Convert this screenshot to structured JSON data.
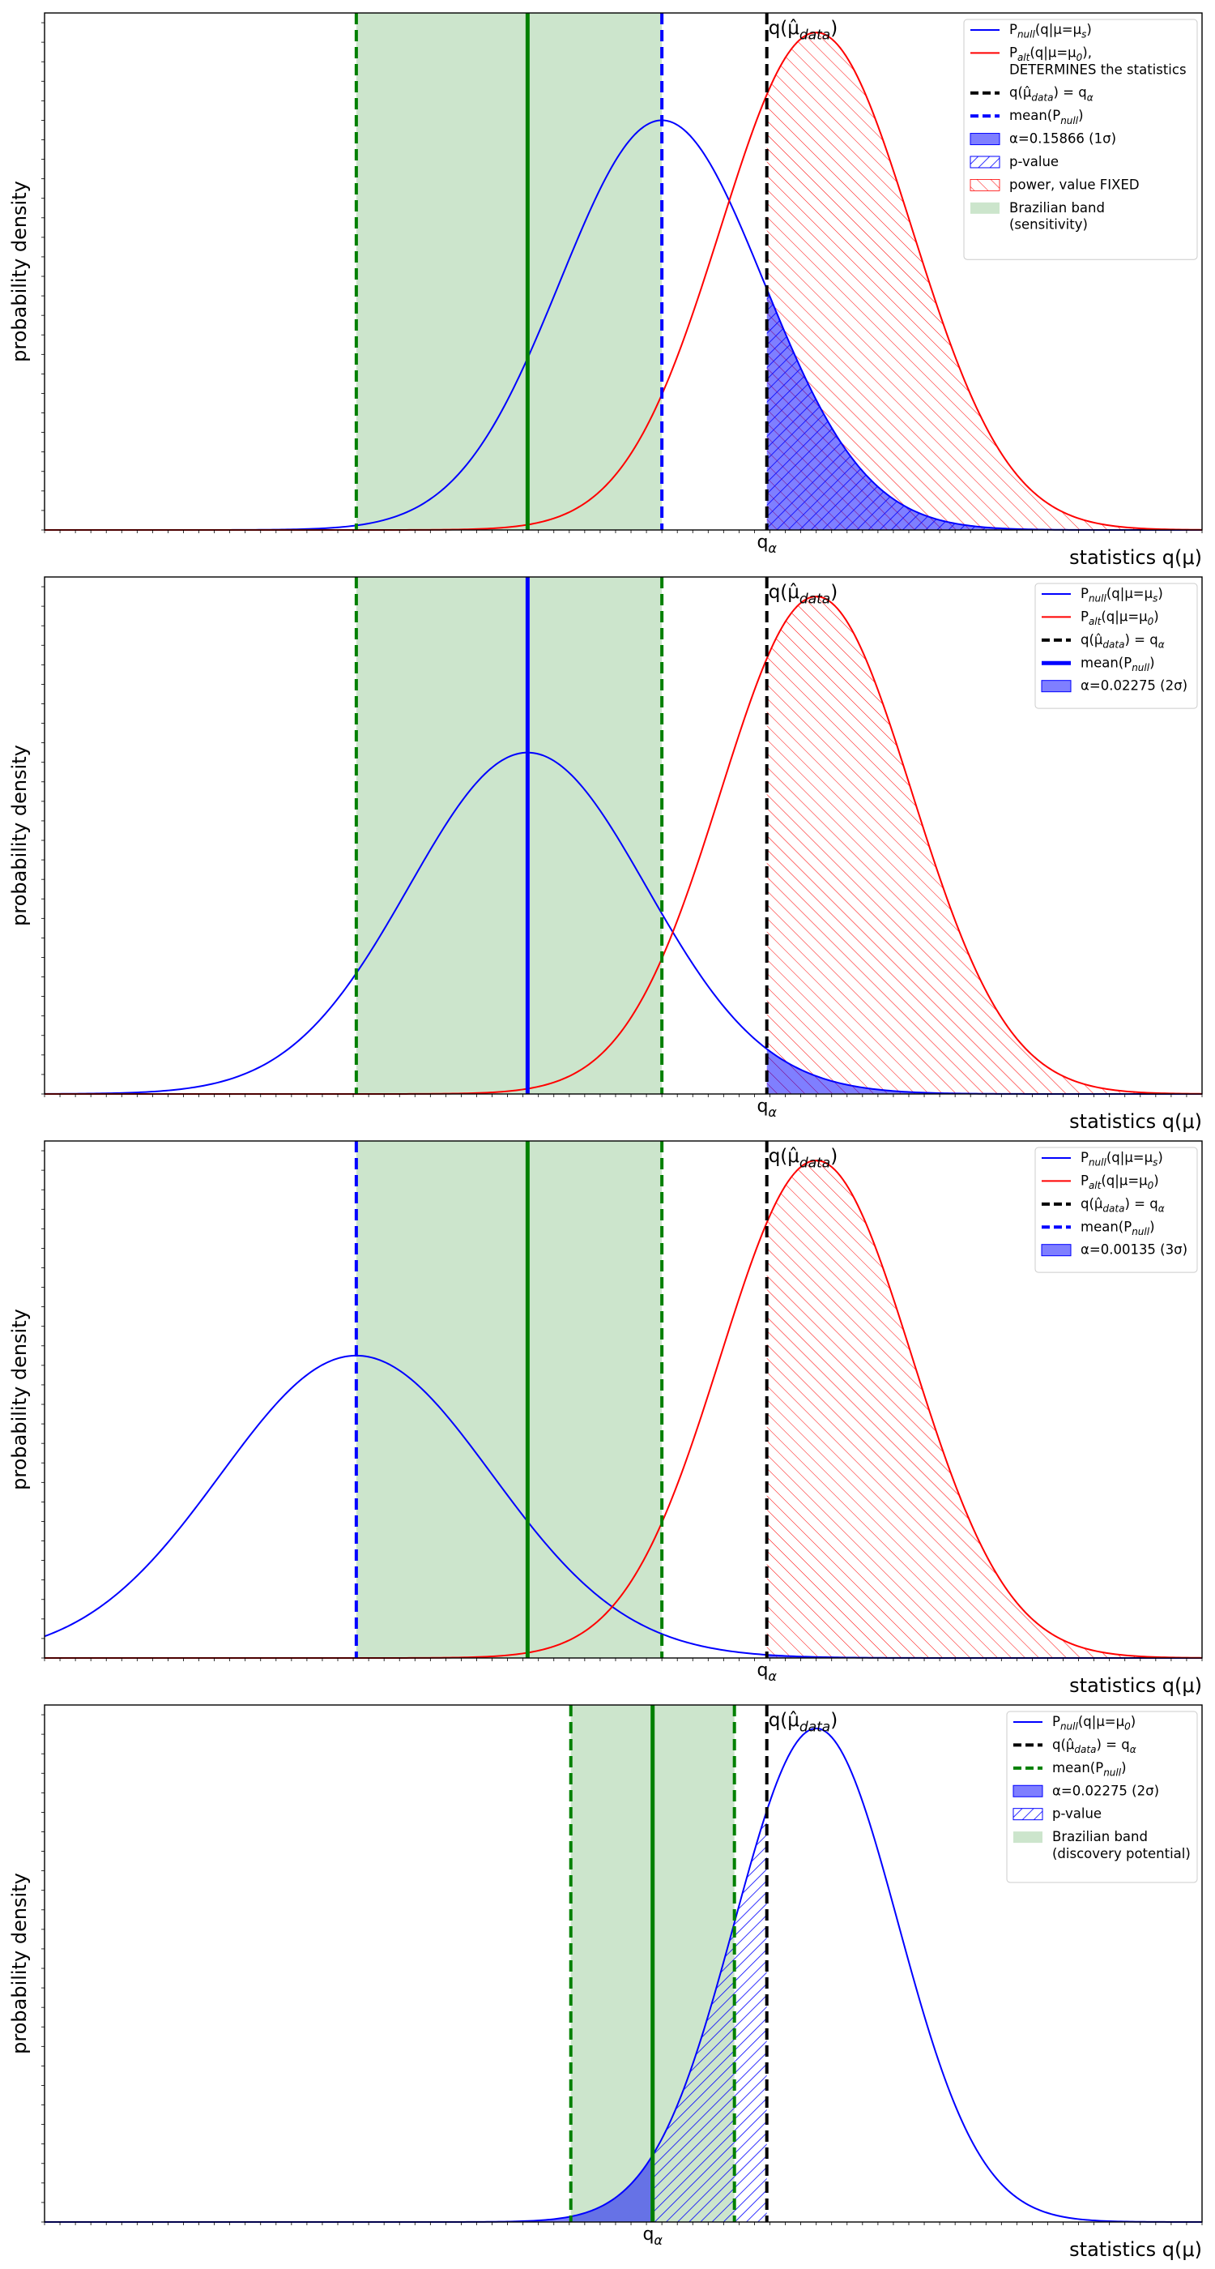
{
  "chart_data": [
    {
      "type": "line",
      "xlabel": "statistics q(μ)",
      "ylabel": "probability density",
      "xlim": [
        -1.5,
        6.0
      ],
      "ylim": [
        0,
        0.265
      ],
      "q_alpha": 3.18,
      "q_alpha_label": "q",
      "q_alpha_sub": "α",
      "data_line_label": "q(μ̂",
      "data_line_sub": "data",
      "series": [
        {
          "name": "null",
          "color": "#0000ff",
          "mean": 2.5,
          "sigma": 0.66,
          "peak": 0.21
        },
        {
          "name": "alt",
          "color": "#ff0000",
          "mean": 3.5,
          "sigma": 0.62,
          "peak": 0.255
        }
      ],
      "vertical_lines": [
        {
          "x": 0.52,
          "color": "#008000",
          "style": "dashed"
        },
        {
          "x": 1.63,
          "color": "#008000",
          "style": "solid"
        },
        {
          "x": 2.5,
          "color": "#0000ff",
          "style": "dashed"
        },
        {
          "x": 3.18,
          "color": "#000000",
          "style": "dashed"
        }
      ],
      "band": [
        0.52,
        2.5
      ],
      "fills": {
        "alpha": "null",
        "pvalue": "null",
        "power": "alt"
      },
      "legend": [
        {
          "kind": "line",
          "color": "#0000ff",
          "text": "P",
          "sub": "null",
          "tail": "(q|μ=μ",
          "tailsub": "s",
          "end": ")"
        },
        {
          "kind": "line",
          "color": "#ff0000",
          "text": "P",
          "sub": "alt",
          "tail": "(q|μ=μ",
          "tailsub": "0",
          "end": "),",
          "line2": "DETERMINES the statistics"
        },
        {
          "kind": "dash",
          "color": "#000000",
          "text": "q(μ̂",
          "sub": "data",
          "tail": ") = q",
          "tailsub": "α",
          "end": ""
        },
        {
          "kind": "dash",
          "color": "#0000ff",
          "text": "mean(P",
          "sub": "null",
          "tail": ")",
          "tailsub": "",
          "end": ""
        },
        {
          "kind": "patch",
          "color": "#0000ff",
          "text": "α=0.15866 (1σ)",
          "sub": "",
          "tail": "",
          "tailsub": "",
          "end": ""
        },
        {
          "kind": "hatch-blue",
          "color": "#0000ff",
          "text": "p-value",
          "sub": "",
          "tail": "",
          "tailsub": "",
          "end": ""
        },
        {
          "kind": "hatch-red",
          "color": "#ff0000",
          "text": "power, value FIXED",
          "sub": "",
          "tail": "",
          "tailsub": "",
          "end": ""
        },
        {
          "kind": "band",
          "color": "#008000",
          "text": "Brazilian band",
          "sub": "",
          "tail": "",
          "tailsub": "",
          "end": "",
          "line2": "(sensitivity)"
        }
      ]
    },
    {
      "type": "line",
      "xlabel": "statistics q(μ)",
      "ylabel": "probability density",
      "xlim": [
        -1.5,
        6.0
      ],
      "ylim": [
        0,
        0.265
      ],
      "q_alpha": 3.18,
      "q_alpha_label": "q",
      "q_alpha_sub": "α",
      "data_line_label": "q(μ̂",
      "data_line_sub": "data",
      "series": [
        {
          "name": "null",
          "color": "#0000ff",
          "mean": 1.63,
          "sigma": 0.77,
          "peak": 0.175
        },
        {
          "name": "alt",
          "color": "#ff0000",
          "mean": 3.5,
          "sigma": 0.62,
          "peak": 0.255
        }
      ],
      "vertical_lines": [
        {
          "x": 0.52,
          "color": "#008000",
          "style": "dashed"
        },
        {
          "x": 2.5,
          "color": "#008000",
          "style": "dashed"
        },
        {
          "x": 1.63,
          "color": "#0000ff",
          "style": "solid"
        },
        {
          "x": 3.18,
          "color": "#000000",
          "style": "dashed"
        }
      ],
      "band": [
        0.52,
        2.5
      ],
      "fills": {
        "alpha": "null",
        "pvalue": "",
        "power": "alt"
      },
      "legend": [
        {
          "kind": "line",
          "color": "#0000ff",
          "text": "P",
          "sub": "null",
          "tail": "(q|μ=μ",
          "tailsub": "s",
          "end": ")"
        },
        {
          "kind": "line",
          "color": "#ff0000",
          "text": "P",
          "sub": "alt",
          "tail": "(q|μ=μ",
          "tailsub": "0",
          "end": ")"
        },
        {
          "kind": "dash",
          "color": "#000000",
          "text": "q(μ̂",
          "sub": "data",
          "tail": ") = q",
          "tailsub": "α",
          "end": ""
        },
        {
          "kind": "thick",
          "color": "#0000ff",
          "text": "mean(P",
          "sub": "null",
          "tail": ")",
          "tailsub": "",
          "end": ""
        },
        {
          "kind": "patch",
          "color": "#0000ff",
          "text": "α=0.02275 (2σ)",
          "sub": "",
          "tail": "",
          "tailsub": "",
          "end": ""
        }
      ]
    },
    {
      "type": "line",
      "xlabel": "statistics q(μ)",
      "ylabel": "probability density",
      "xlim": [
        -1.5,
        6.0
      ],
      "ylim": [
        0,
        0.265
      ],
      "q_alpha": 3.18,
      "q_alpha_label": "q",
      "q_alpha_sub": "α",
      "data_line_label": "q(μ̂",
      "data_line_sub": "data",
      "series": [
        {
          "name": "null",
          "color": "#0000ff",
          "mean": 0.52,
          "sigma": 0.88,
          "peak": 0.155
        },
        {
          "name": "alt",
          "color": "#ff0000",
          "mean": 3.5,
          "sigma": 0.62,
          "peak": 0.255
        }
      ],
      "vertical_lines": [
        {
          "x": 2.5,
          "color": "#008000",
          "style": "dashed"
        },
        {
          "x": 1.63,
          "color": "#008000",
          "style": "solid"
        },
        {
          "x": 0.52,
          "color": "#0000ff",
          "style": "dashed"
        },
        {
          "x": 3.18,
          "color": "#000000",
          "style": "dashed"
        }
      ],
      "band": [
        0.52,
        2.5
      ],
      "fills": {
        "alpha": "null",
        "pvalue": "",
        "power": "alt"
      },
      "legend": [
        {
          "kind": "line",
          "color": "#0000ff",
          "text": "P",
          "sub": "null",
          "tail": "(q|μ=μ",
          "tailsub": "s",
          "end": ")"
        },
        {
          "kind": "line",
          "color": "#ff0000",
          "text": "P",
          "sub": "alt",
          "tail": "(q|μ=μ",
          "tailsub": "0",
          "end": ")"
        },
        {
          "kind": "dash",
          "color": "#000000",
          "text": "q(μ̂",
          "sub": "data",
          "tail": ") = q",
          "tailsub": "α",
          "end": ""
        },
        {
          "kind": "dash",
          "color": "#0000ff",
          "text": "mean(P",
          "sub": "null",
          "tail": ")",
          "tailsub": "",
          "end": ""
        },
        {
          "kind": "patch",
          "color": "#0000ff",
          "text": "α=0.00135 (3σ)",
          "sub": "",
          "tail": "",
          "tailsub": "",
          "end": ""
        }
      ]
    },
    {
      "type": "line",
      "xlabel": "statistics q(μ)",
      "ylabel": "probability density",
      "xlim": [
        -1.5,
        6.0
      ],
      "ylim": [
        0,
        0.265
      ],
      "q_alpha": 2.44,
      "q_alpha_label": "q",
      "q_alpha_sub": "α",
      "data_line_x": 3.18,
      "data_line_label": "q(μ̂",
      "data_line_sub": "data",
      "series": [
        {
          "name": "null",
          "color": "#0000ff",
          "mean": 3.5,
          "sigma": 0.53,
          "peak": 0.253
        }
      ],
      "vertical_lines": [
        {
          "x": 1.91,
          "color": "#008000",
          "style": "dashed"
        },
        {
          "x": 2.44,
          "color": "#008000",
          "style": "solid"
        },
        {
          "x": 2.97,
          "color": "#008000",
          "style": "dashed"
        },
        {
          "x": 3.18,
          "color": "#000000",
          "style": "dashed"
        }
      ],
      "band": [
        1.91,
        2.97
      ],
      "fills": {
        "alpha": "null",
        "alpha_to": 2.44,
        "pvalue": "null",
        "pvalue_from": 2.44,
        "pvalue_to": 3.18,
        "power": ""
      },
      "legend": [
        {
          "kind": "line",
          "color": "#0000ff",
          "text": "P",
          "sub": "null",
          "tail": "(q|μ=μ",
          "tailsub": "0",
          "end": ")"
        },
        {
          "kind": "dash",
          "color": "#000000",
          "text": "q(μ̂",
          "sub": "data",
          "tail": ") = q",
          "tailsub": "α",
          "end": ""
        },
        {
          "kind": "dash",
          "color": "#008000",
          "text": "mean(P",
          "sub": "null",
          "tail": ")",
          "tailsub": "",
          "end": ""
        },
        {
          "kind": "patch",
          "color": "#0000ff",
          "text": "α=0.02275 (2σ)",
          "sub": "",
          "tail": "",
          "tailsub": "",
          "end": ""
        },
        {
          "kind": "hatch-blue",
          "color": "#0000ff",
          "text": "p-value",
          "sub": "",
          "tail": "",
          "tailsub": "",
          "end": ""
        },
        {
          "kind": "band",
          "color": "#008000",
          "text": "Brazilian band",
          "sub": "",
          "tail": "",
          "tailsub": "",
          "end": "",
          "line2": "(discovery potential)"
        }
      ]
    }
  ]
}
